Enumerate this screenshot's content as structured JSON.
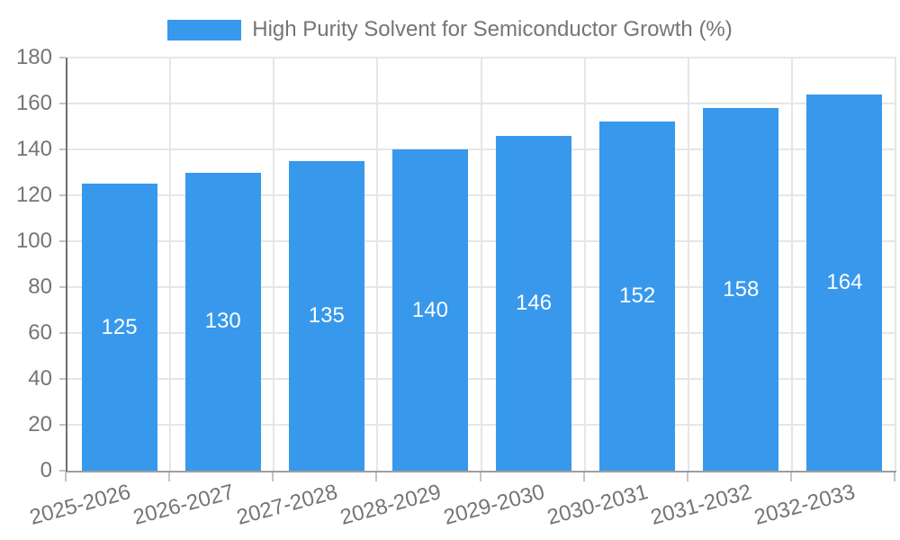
{
  "legend": {
    "label": "High Purity Solvent for Semiconductor Growth (%)"
  },
  "colors": {
    "bar": "#3898EC",
    "axis_text": "#757575",
    "bar_label_text": "#FFFFFF",
    "gridline": "#E6E6E6",
    "y_axis_line": "#6E6E6E",
    "x_axis_line": "#9E9E9E",
    "tick": "#C4C4C4",
    "background": "#FFFFFF"
  },
  "chart_data": {
    "type": "bar",
    "title": "",
    "xlabel": "",
    "ylabel": "",
    "categories": [
      "2025-2026",
      "2026-2027",
      "2027-2028",
      "2028-2029",
      "2029-2030",
      "2030-2031",
      "2031-2032",
      "2032-2033"
    ],
    "series": [
      {
        "name": "High Purity Solvent for Semiconductor Growth (%)",
        "values": [
          125,
          130,
          135,
          140,
          146,
          152,
          158,
          164
        ]
      }
    ],
    "ylim": [
      0,
      180
    ],
    "ytick_step": 20,
    "ytick_labels": [
      "0",
      "20",
      "40",
      "60",
      "80",
      "100",
      "120",
      "140",
      "160",
      "180"
    ],
    "grid": true,
    "legend_position": "top",
    "bar_value_labels_visible": true,
    "x_label_rotation_deg": -15
  }
}
